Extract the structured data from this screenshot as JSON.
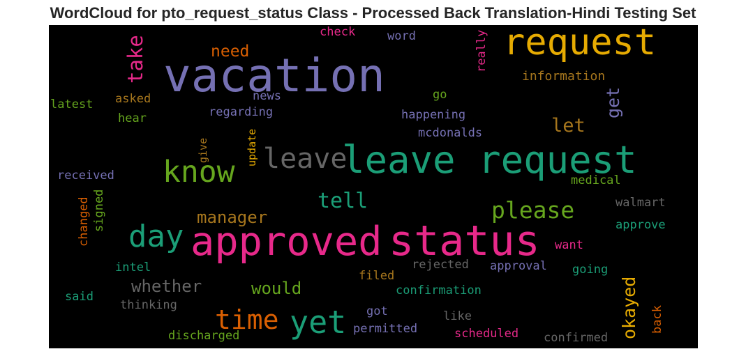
{
  "title": "WordCloud for pto_request_status Class - Processed Back Translation-Hindi Testing Set",
  "words": [
    {
      "text": "vacation",
      "color": "#7570b3"
    },
    {
      "text": "request",
      "color": "#e6ab02"
    },
    {
      "text": "leave request",
      "color": "#1b9e77"
    },
    {
      "text": "approved",
      "color": "#e7298a"
    },
    {
      "text": "status",
      "color": "#e7298a"
    },
    {
      "text": "know",
      "color": "#66a61e"
    },
    {
      "text": "leave",
      "color": "#666666"
    },
    {
      "text": "day",
      "color": "#1b9e77"
    },
    {
      "text": "time",
      "color": "#d95f02"
    },
    {
      "text": "yet",
      "color": "#1b9e77"
    },
    {
      "text": "please",
      "color": "#66a61e"
    },
    {
      "text": "take",
      "color": "#e7298a"
    },
    {
      "text": "need",
      "color": "#d95f02"
    },
    {
      "text": "let",
      "color": "#a6761d"
    },
    {
      "text": "get",
      "color": "#7570b3"
    },
    {
      "text": "tell",
      "color": "#1b9e77"
    },
    {
      "text": "manager",
      "color": "#a6761d"
    },
    {
      "text": "whether",
      "color": "#666666"
    },
    {
      "text": "would",
      "color": "#66a61e"
    },
    {
      "text": "okayed",
      "color": "#e6ab02"
    },
    {
      "text": "check",
      "color": "#e7298a"
    },
    {
      "text": "word",
      "color": "#7570b3"
    },
    {
      "text": "really",
      "color": "#e7298a"
    },
    {
      "text": "information",
      "color": "#a6761d"
    },
    {
      "text": "asked",
      "color": "#a6761d"
    },
    {
      "text": "news",
      "color": "#7570b3"
    },
    {
      "text": "go",
      "color": "#66a61e"
    },
    {
      "text": "latest",
      "color": "#66a61e"
    },
    {
      "text": "regarding",
      "color": "#7570b3"
    },
    {
      "text": "happening",
      "color": "#7570b3"
    },
    {
      "text": "hear",
      "color": "#66a61e"
    },
    {
      "text": "mcdonalds",
      "color": "#7570b3"
    },
    {
      "text": "give",
      "color": "#a6761d"
    },
    {
      "text": "update",
      "color": "#e6ab02"
    },
    {
      "text": "received",
      "color": "#7570b3"
    },
    {
      "text": "medical",
      "color": "#66a61e"
    },
    {
      "text": "walmart",
      "color": "#666666"
    },
    {
      "text": "changed",
      "color": "#d95f02"
    },
    {
      "text": "signed",
      "color": "#66a61e"
    },
    {
      "text": "approve",
      "color": "#1b9e77"
    },
    {
      "text": "want",
      "color": "#e7298a"
    },
    {
      "text": "intel",
      "color": "#1b9e77"
    },
    {
      "text": "rejected",
      "color": "#666666"
    },
    {
      "text": "approval",
      "color": "#7570b3"
    },
    {
      "text": "going",
      "color": "#1b9e77"
    },
    {
      "text": "filed",
      "color": "#a6761d"
    },
    {
      "text": "said",
      "color": "#1b9e77"
    },
    {
      "text": "confirmation",
      "color": "#1b9e77"
    },
    {
      "text": "thinking",
      "color": "#666666"
    },
    {
      "text": "got",
      "color": "#7570b3"
    },
    {
      "text": "like",
      "color": "#666666"
    },
    {
      "text": "back",
      "color": "#d95f02"
    },
    {
      "text": "permitted",
      "color": "#7570b3"
    },
    {
      "text": "discharged",
      "color": "#66a61e"
    },
    {
      "text": "scheduled",
      "color": "#e7298a"
    },
    {
      "text": "confirmed",
      "color": "#666666"
    }
  ]
}
